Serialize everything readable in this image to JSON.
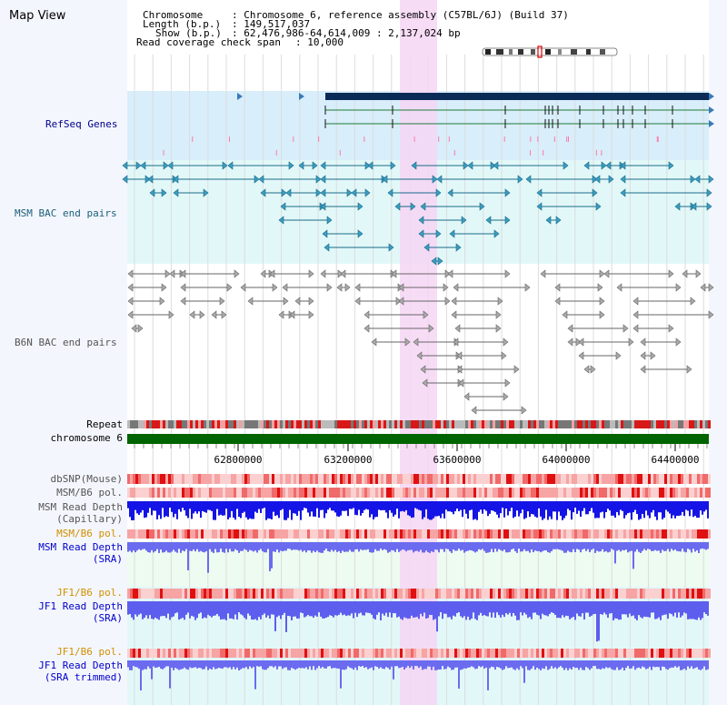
{
  "view_title": "Map View",
  "header": {
    "chromosome_key": "Chromosome",
    "chromosome_value": ": Chromosome 6, reference assembly (C57BL/6J) (Build 37)",
    "length_key": "Length (b.p.)",
    "length_value": ": 149,517,037",
    "show_key": "Show (b.p.)",
    "show_value": ": 62,476,986-64,614,009 : 2,137,024 bp",
    "coverage_key": "Read coverage check span",
    "coverage_value": ": 10,000"
  },
  "tracks": {
    "refseq": "RefSeq Genes",
    "msm_bac": "MSM BAC end pairs",
    "b6n_bac": "B6N BAC end pairs",
    "repeat": "Repeat",
    "chromosome": "chromosome 6",
    "dbsnp": "dbSNP(Mouse)",
    "msm_b6_pol_1": "MSM/B6 pol.",
    "msm_read_depth_cap_1": "MSM Read Depth",
    "msm_read_depth_cap_2": "(Capillary)",
    "msm_b6_pol_2": "MSM/B6 pol.",
    "msm_read_depth_sra_1": "MSM Read Depth",
    "msm_read_depth_sra_2": "(SRA)",
    "jf1_b6_pol_1": "JF1/B6 pol.",
    "jf1_read_depth_sra_1": "JF1 Read Depth",
    "jf1_read_depth_sra_2": "(SRA)",
    "jf1_b6_pol_2": "JF1/B6 pol.",
    "jf1_read_depth_trim_1": "JF1 Read Depth",
    "jf1_read_depth_trim_2": "(SRA trimmed)"
  },
  "ruler": {
    "ticks": [
      "62800000",
      "63200000",
      "63600000",
      "64000000",
      "64400000"
    ]
  },
  "colors": {
    "label_navy": "#00008b",
    "label_teal": "#1a5f7a",
    "label_gray": "#555555",
    "label_orange": "#d09000",
    "label_blue": "#0000cc",
    "highlight": "#f6d6f4",
    "refseq_bg": "#d8eefa",
    "msm_bg": "#e2f8f8",
    "sra_bg": "#eefbf0",
    "chromosome_bar": "#006400"
  }
}
